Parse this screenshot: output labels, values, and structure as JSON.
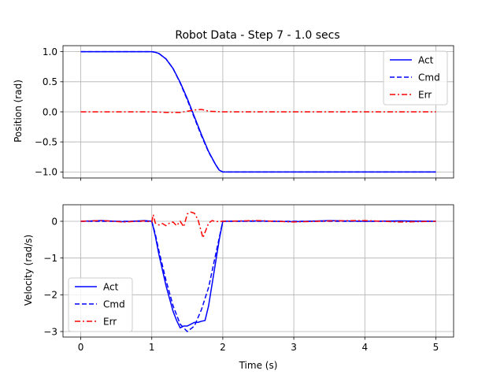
{
  "chart_data": [
    {
      "type": "line",
      "title": "Robot Data - Step 7 - 1.0 secs",
      "xlabel": "",
      "ylabel": "Position (rad)",
      "xlim": [
        -0.25,
        5.25
      ],
      "ylim": [
        -1.1,
        1.1
      ],
      "xticks": [
        0,
        1,
        2,
        3,
        4,
        5
      ],
      "yticks": [
        -1.0,
        -0.5,
        0.0,
        0.5,
        1.0
      ],
      "ytick_labels": [
        "−1.0",
        "−0.5",
        "0.0",
        "0.5",
        "1.0"
      ],
      "show_xtick_labels": false,
      "grid": true,
      "legend_position": "top-right",
      "series": [
        {
          "name": "Act",
          "color": "#0000ff",
          "style": "solid",
          "x": [
            0,
            0.5,
            1.0,
            1.05,
            1.1,
            1.2,
            1.3,
            1.4,
            1.5,
            1.6,
            1.7,
            1.8,
            1.9,
            1.95,
            2.0,
            2.5,
            3.0,
            4.0,
            5.0
          ],
          "y": [
            1.0,
            1.0,
            1.0,
            0.99,
            0.97,
            0.88,
            0.72,
            0.49,
            0.22,
            -0.08,
            -0.38,
            -0.66,
            -0.88,
            -0.97,
            -1.0,
            -1.0,
            -1.0,
            -1.0,
            -1.0
          ]
        },
        {
          "name": "Cmd",
          "color": "#0000ff",
          "style": "dashed",
          "x": [
            0,
            0.5,
            1.0,
            1.05,
            1.1,
            1.2,
            1.3,
            1.4,
            1.5,
            1.6,
            1.7,
            1.8,
            1.9,
            1.95,
            2.0,
            2.5,
            3.0,
            4.0,
            5.0
          ],
          "y": [
            1.0,
            1.0,
            1.0,
            0.99,
            0.97,
            0.88,
            0.72,
            0.48,
            0.2,
            -0.1,
            -0.4,
            -0.67,
            -0.88,
            -0.97,
            -1.0,
            -1.0,
            -1.0,
            -1.0,
            -1.0
          ]
        },
        {
          "name": "Err",
          "color": "#ff0000",
          "style": "dashdot",
          "x": [
            0,
            0.5,
            1.0,
            1.2,
            1.4,
            1.5,
            1.6,
            1.7,
            1.8,
            2.0,
            3.0,
            4.0,
            5.0
          ],
          "y": [
            0.0,
            0.0,
            0.0,
            -0.01,
            -0.01,
            0.01,
            0.03,
            0.04,
            0.01,
            0.0,
            0.0,
            0.0,
            0.0
          ]
        }
      ]
    },
    {
      "type": "line",
      "title": "",
      "xlabel": "Time (s)",
      "ylabel": "Velocity (rad/s)",
      "xlim": [
        -0.25,
        5.25
      ],
      "ylim": [
        -3.15,
        0.45
      ],
      "xticks": [
        0,
        1,
        2,
        3,
        4,
        5
      ],
      "xtick_labels": [
        "0",
        "1",
        "2",
        "3",
        "4",
        "5"
      ],
      "yticks": [
        -3,
        -2,
        -1,
        0
      ],
      "ytick_labels": [
        "−3",
        "−2",
        "−1",
        "0"
      ],
      "show_xtick_labels": true,
      "grid": true,
      "legend_position": "bottom-left",
      "series": [
        {
          "name": "Act",
          "color": "#0000ff",
          "style": "solid",
          "x": [
            0,
            0.3,
            0.6,
            0.9,
            1.0,
            1.05,
            1.1,
            1.2,
            1.3,
            1.35,
            1.4,
            1.45,
            1.5,
            1.55,
            1.6,
            1.65,
            1.7,
            1.75,
            1.8,
            1.85,
            1.9,
            1.95,
            2.0,
            2.5,
            3.0,
            3.5,
            4.0,
            4.5,
            5.0
          ],
          "y": [
            0.0,
            0.02,
            -0.01,
            0.02,
            0.0,
            -0.4,
            -0.9,
            -1.75,
            -2.45,
            -2.7,
            -2.9,
            -2.85,
            -2.85,
            -2.8,
            -2.75,
            -2.75,
            -2.72,
            -2.7,
            -2.3,
            -1.7,
            -1.1,
            -0.5,
            0.0,
            0.01,
            -0.01,
            0.02,
            0.0,
            0.01,
            0.0
          ]
        },
        {
          "name": "Cmd",
          "color": "#0000ff",
          "style": "dashed",
          "x": [
            0,
            0.5,
            1.0,
            1.05,
            1.1,
            1.2,
            1.3,
            1.4,
            1.5,
            1.6,
            1.7,
            1.8,
            1.85,
            1.9,
            1.95,
            2.0,
            3.0,
            4.0,
            5.0
          ],
          "y": [
            0.0,
            0.0,
            0.0,
            -0.35,
            -0.8,
            -1.6,
            -2.3,
            -2.8,
            -3.0,
            -2.85,
            -2.4,
            -1.8,
            -1.35,
            -0.9,
            -0.45,
            0.0,
            0.0,
            0.0,
            0.0
          ]
        },
        {
          "name": "Err",
          "color": "#ff0000",
          "style": "dashdot",
          "x": [
            0,
            0.3,
            0.6,
            0.9,
            1.0,
            1.02,
            1.05,
            1.1,
            1.15,
            1.2,
            1.25,
            1.3,
            1.35,
            1.4,
            1.45,
            1.5,
            1.55,
            1.6,
            1.65,
            1.7,
            1.72,
            1.75,
            1.8,
            1.85,
            1.9,
            2.0,
            2.5,
            3.0,
            3.5,
            4.0,
            4.5,
            5.0
          ],
          "y": [
            0.0,
            0.02,
            -0.02,
            0.01,
            -0.02,
            0.18,
            -0.05,
            -0.1,
            -0.06,
            -0.12,
            -0.05,
            -0.02,
            -0.12,
            0.0,
            -0.15,
            0.2,
            0.25,
            0.22,
            0.05,
            -0.3,
            -0.45,
            -0.3,
            -0.05,
            0.02,
            -0.01,
            0.0,
            0.02,
            -0.02,
            0.01,
            0.02,
            -0.02,
            0.0
          ]
        }
      ]
    }
  ]
}
